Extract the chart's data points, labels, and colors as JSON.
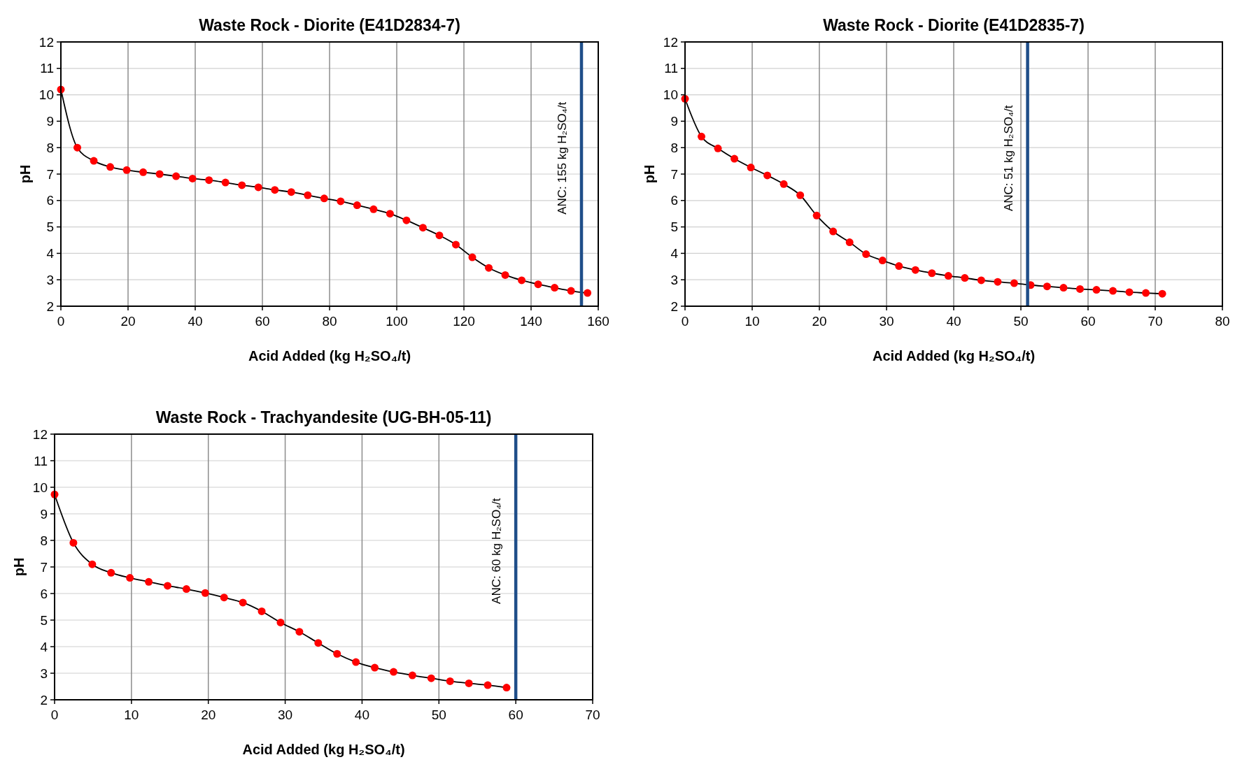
{
  "chart_data": [
    {
      "type": "line",
      "title": "Waste Rock - Diorite (E41D2834-7)",
      "xlabel": "Acid Added (kg H₂SO₄/t)",
      "ylabel": "pH",
      "xlim": [
        0,
        160
      ],
      "xticks": [
        0,
        20,
        40,
        60,
        80,
        100,
        120,
        140,
        160
      ],
      "ylim": [
        2,
        12
      ],
      "yticks": [
        2,
        3,
        4,
        5,
        6,
        7,
        8,
        9,
        10,
        11,
        12
      ],
      "grid": true,
      "marker": "circle",
      "x": [
        0,
        4.9,
        9.8,
        14.7,
        19.6,
        24.5,
        29.4,
        34.3,
        39.2,
        44.1,
        49,
        53.9,
        58.8,
        63.7,
        68.6,
        73.5,
        78.4,
        83.3,
        88.2,
        93.1,
        98,
        102.9,
        107.8,
        112.7,
        117.6,
        122.5,
        127.4,
        132.3,
        137.2,
        142.1,
        147,
        151.9,
        156.8
      ],
      "series": [
        {
          "color": "#ff0000",
          "values": [
            10.2,
            8.0,
            7.5,
            7.27,
            7.15,
            7.07,
            7.0,
            6.92,
            6.83,
            6.77,
            6.68,
            6.58,
            6.5,
            6.4,
            6.32,
            6.2,
            6.08,
            5.97,
            5.82,
            5.67,
            5.5,
            5.25,
            4.97,
            4.68,
            4.33,
            3.85,
            3.45,
            3.18,
            2.98,
            2.83,
            2.7,
            2.58,
            2.5
          ]
        }
      ],
      "ref_lines": [
        {
          "axis": "x",
          "value": 155,
          "label": "ANC: 155 kg H₂SO₄/t",
          "color": "#1f4e89"
        }
      ]
    },
    {
      "type": "line",
      "title": "Waste Rock - Diorite (E41D2835-7)",
      "xlabel": "Acid Added (kg H₂SO₄/t)",
      "ylabel": "pH",
      "xlim": [
        0,
        80
      ],
      "xticks": [
        0,
        10,
        20,
        30,
        40,
        50,
        60,
        70,
        80
      ],
      "ylim": [
        2,
        12
      ],
      "yticks": [
        2,
        3,
        4,
        5,
        6,
        7,
        8,
        9,
        10,
        11,
        12
      ],
      "grid": true,
      "marker": "circle",
      "x": [
        0,
        2.45,
        4.9,
        7.35,
        9.8,
        12.25,
        14.7,
        17.15,
        19.6,
        22.05,
        24.5,
        26.95,
        29.4,
        31.85,
        34.3,
        36.75,
        39.2,
        41.65,
        44.1,
        46.55,
        49,
        51.45,
        53.9,
        56.35,
        58.8,
        61.25,
        63.7,
        66.15,
        68.6,
        71.05
      ],
      "series": [
        {
          "color": "#ff0000",
          "values": [
            9.85,
            8.42,
            7.97,
            7.58,
            7.25,
            6.95,
            6.62,
            6.2,
            5.43,
            4.83,
            4.42,
            3.97,
            3.73,
            3.52,
            3.37,
            3.25,
            3.15,
            3.07,
            2.98,
            2.92,
            2.87,
            2.8,
            2.75,
            2.7,
            2.65,
            2.62,
            2.58,
            2.53,
            2.5,
            2.47
          ]
        }
      ],
      "ref_lines": [
        {
          "axis": "x",
          "value": 51,
          "label": "ANC: 51 kg H₂SO₄/t",
          "color": "#1f4e89"
        }
      ]
    },
    {
      "type": "line",
      "title": "Waste Rock - Trachyandesite (UG-BH-05-11)",
      "xlabel": "Acid Added (kg H₂SO₄/t)",
      "ylabel": "pH",
      "xlim": [
        0,
        70
      ],
      "xticks": [
        0,
        10,
        20,
        30,
        40,
        50,
        60,
        70
      ],
      "ylim": [
        2,
        12
      ],
      "yticks": [
        2,
        3,
        4,
        5,
        6,
        7,
        8,
        9,
        10,
        11,
        12
      ],
      "grid": true,
      "marker": "circle",
      "x": [
        0,
        2.45,
        4.9,
        7.35,
        9.8,
        12.25,
        14.7,
        17.15,
        19.6,
        22.05,
        24.5,
        26.95,
        29.4,
        31.85,
        34.3,
        36.75,
        39.2,
        41.65,
        44.1,
        46.55,
        49,
        51.45,
        53.9,
        56.35,
        58.8
      ],
      "series": [
        {
          "color": "#ff0000",
          "values": [
            9.73,
            7.91,
            7.1,
            6.78,
            6.59,
            6.44,
            6.29,
            6.17,
            6.02,
            5.85,
            5.66,
            5.33,
            4.91,
            4.56,
            4.14,
            3.73,
            3.42,
            3.21,
            3.05,
            2.92,
            2.81,
            2.7,
            2.62,
            2.55,
            2.46
          ]
        }
      ],
      "ref_lines": [
        {
          "axis": "x",
          "value": 60,
          "label": "ANC: 60 kg H₂SO₄/t",
          "color": "#1f4e89"
        }
      ]
    }
  ]
}
